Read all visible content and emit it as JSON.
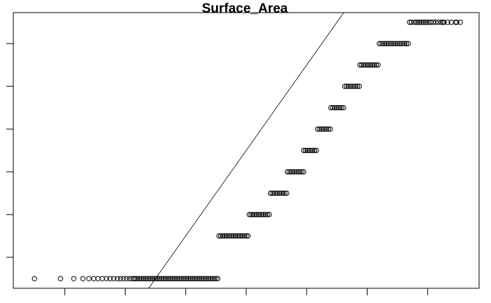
{
  "chart_data": {
    "type": "scatter",
    "title": "Surface_Area",
    "xlabel": "",
    "ylabel": "",
    "xlim": [
      -3.85,
      3.85
    ],
    "ylim": [
      0.55,
      13.45
    ],
    "x_ticks": [
      -3,
      -2,
      -1,
      0,
      1,
      2,
      3
    ],
    "y_ticks": [
      2,
      4,
      6,
      8,
      10,
      12
    ],
    "tick_labels_shown": false,
    "grid": false,
    "reference_line": {
      "intercept": 7,
      "slope": 4.0
    },
    "groups": [
      {
        "y": 1,
        "x_from": -3.5,
        "x_to": -0.45
      },
      {
        "y": 3,
        "x_from": -0.45,
        "x_to": 0.05
      },
      {
        "y": 4,
        "x_from": 0.05,
        "x_to": 0.4
      },
      {
        "y": 5,
        "x_from": 0.4,
        "x_to": 0.68
      },
      {
        "y": 6,
        "x_from": 0.68,
        "x_to": 0.95
      },
      {
        "y": 7,
        "x_from": 0.95,
        "x_to": 1.18
      },
      {
        "y": 8,
        "x_from": 1.18,
        "x_to": 1.4
      },
      {
        "y": 9,
        "x_from": 1.4,
        "x_to": 1.63
      },
      {
        "y": 10,
        "x_from": 1.63,
        "x_to": 1.88
      },
      {
        "y": 11,
        "x_from": 1.88,
        "x_to": 2.2
      },
      {
        "y": 12,
        "x_from": 2.2,
        "x_to": 2.7
      },
      {
        "y": 13,
        "x_from": 2.7,
        "x_to": 3.55
      }
    ]
  }
}
